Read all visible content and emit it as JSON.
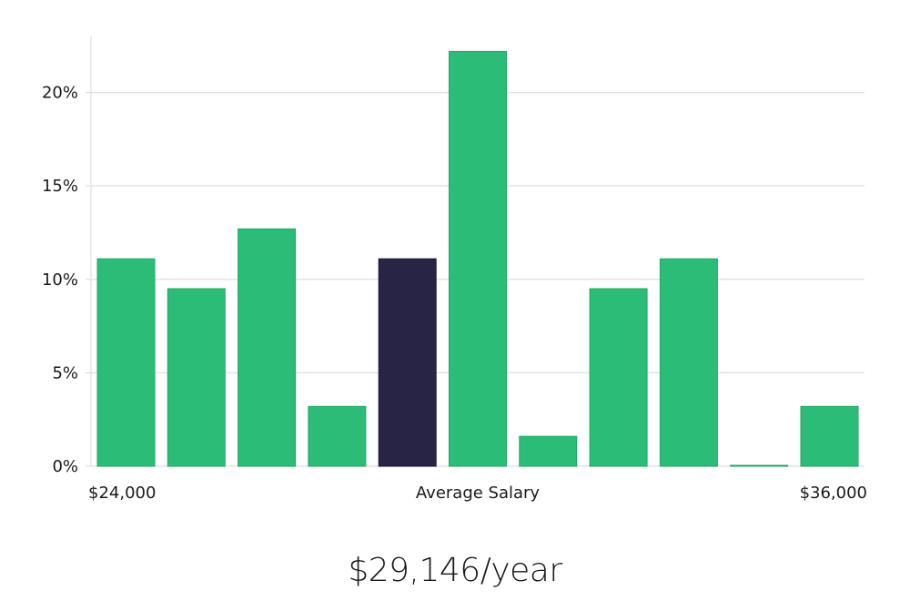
{
  "chart_data": {
    "type": "bar",
    "title": "",
    "xlabel": "Average Salary",
    "ylabel": "",
    "ylim": [
      0,
      23
    ],
    "yticks": [
      0,
      5,
      10,
      15,
      20
    ],
    "ytick_labels": [
      "0%",
      "5%",
      "10%",
      "15%",
      "20%"
    ],
    "x_edge_labels": [
      "$24,000",
      "$36,000"
    ],
    "values": [
      11.1,
      9.5,
      12.7,
      3.2,
      11.1,
      22.2,
      1.6,
      9.5,
      11.1,
      0.0,
      3.2
    ],
    "highlight_index": 4,
    "grid": true
  },
  "colors": {
    "bar": "#2bbd77",
    "bar_border": "#1fa866",
    "highlight": "#272446",
    "grid": "#e3e3e3",
    "axis": "#d8d8d8"
  },
  "summary": {
    "salary": "$29,146/year"
  }
}
